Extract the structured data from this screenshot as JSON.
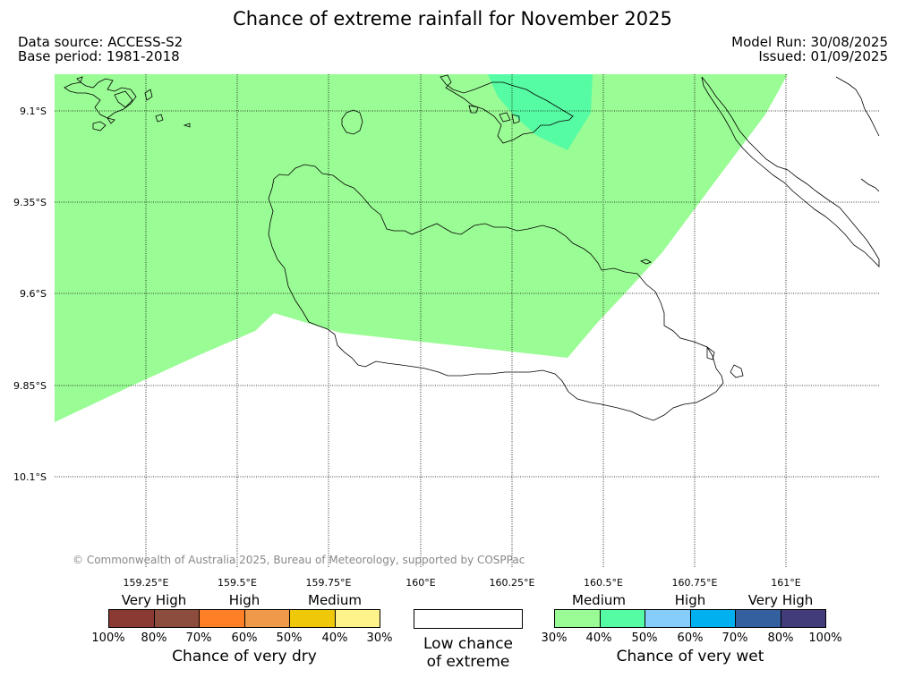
{
  "title": "Chance of extreme rainfall for November 2025",
  "source": {
    "data_source": "Data source: ACCESS-S2",
    "base_period": "Base period: 1981-2018"
  },
  "run": {
    "model_run": "Model Run: 30/08/2025",
    "issued": "Issued: 01/09/2025"
  },
  "lat_labels": [
    "9.1°S",
    "9.35°S",
    "9.6°S",
    "9.85°S",
    "10.1°S"
  ],
  "lon_labels": [
    "159.25°E",
    "159.5°E",
    "159.75°E",
    "160°E",
    "160.25°E",
    "160.5°E",
    "160.75°E",
    "161°E"
  ],
  "copyright": "© Commonwealth of Australia 2025, Bureau of Meteorology, supported by COSPPac",
  "dry_scale": {
    "categories": [
      "Very High",
      "High",
      "Medium"
    ],
    "ticks": [
      "100%",
      "80%",
      "70%",
      "60%",
      "50%",
      "40%",
      "30%"
    ],
    "title": "Chance of very dry",
    "colors": [
      "#8b3a33",
      "#8c4d3e",
      "#ff7f27",
      "#ef9a4a",
      "#f0c80a",
      "#fef38b"
    ]
  },
  "low_chance": {
    "line1": "Low chance",
    "line2": "of extreme"
  },
  "wet_scale": {
    "categories": [
      "Medium",
      "High",
      "Very High"
    ],
    "ticks": [
      "30%",
      "40%",
      "50%",
      "60%",
      "70%",
      "80%",
      "100%"
    ],
    "title": "Chance of very wet",
    "colors": [
      "#9afc94",
      "#56fca4",
      "#86cdfb",
      "#00b0ef",
      "#3460a0",
      "#423c7a"
    ]
  },
  "map_colors": {
    "medium_wet": "#9afc94",
    "high_wet_low": "#56fca4"
  }
}
